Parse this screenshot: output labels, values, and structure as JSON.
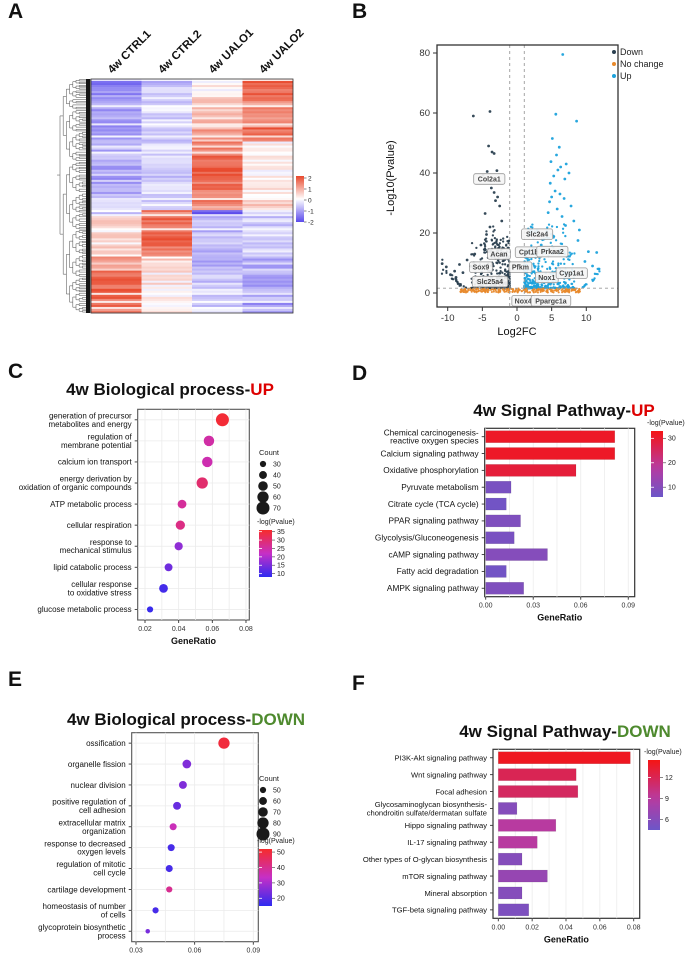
{
  "figure": {
    "panel_labels": [
      "A",
      "B",
      "C",
      "D",
      "E",
      "F"
    ]
  },
  "chart_data": [
    {
      "id": "heatmap",
      "panel": "A",
      "type": "heatmap",
      "columns": [
        "4w CTRL1",
        "4w CTRL2",
        "4w UALO1",
        "4w UALO2"
      ],
      "n_rows": 115,
      "colors": {
        "positive": "#E8482C",
        "negative": "#5A4AEC",
        "zero": "#FFFFFF"
      },
      "legend": {
        "ticks": [
          2,
          1,
          0,
          -1,
          -2
        ]
      },
      "row_blocks": [
        {
          "frac": 0.08,
          "means": [
            -1.3,
            -0.6,
            0.15,
            1.6
          ]
        },
        {
          "frac": 0.13,
          "means": [
            -1.1,
            -0.5,
            0.6,
            1.2
          ]
        },
        {
          "frac": 0.06,
          "means": [
            -0.9,
            -0.7,
            0.9,
            1.7
          ]
        },
        {
          "frac": 0.25,
          "means": [
            -0.9,
            -0.5,
            1.55,
            0.15
          ]
        },
        {
          "frac": 0.04,
          "means": [
            -0.5,
            -0.3,
            1.2,
            0.6
          ]
        },
        {
          "frac": 0.03,
          "means": [
            -0.4,
            1.3,
            -1.7,
            -0.4
          ]
        },
        {
          "frac": 0.17,
          "means": [
            0.3,
            1.55,
            -0.8,
            -0.5
          ]
        },
        {
          "frac": 0.06,
          "means": [
            0.9,
            0.4,
            -1.0,
            -0.8
          ]
        },
        {
          "frac": 0.18,
          "means": [
            1.5,
            0.2,
            -0.55,
            -1.0
          ]
        }
      ]
    },
    {
      "id": "volcano",
      "panel": "B",
      "type": "scatter",
      "xlabel": "Log2FC",
      "ylabel": "-Log10(Pvalue)",
      "x_ticks": [
        -10,
        -5,
        0,
        5,
        10
      ],
      "y_ticks": [
        0,
        20,
        40,
        60,
        80
      ],
      "xlim": [
        -11.5,
        14.6
      ],
      "ylim": [
        -4.7,
        84
      ],
      "thresholds": {
        "x": [
          -1.05,
          1.05
        ],
        "y": 1.6
      },
      "legend": [
        {
          "label": "Down",
          "color": "#2B4050"
        },
        {
          "label": "No change",
          "color": "#E8892B"
        },
        {
          "label": "Up",
          "color": "#1CA2DC"
        }
      ],
      "series": {
        "down": {
          "color": "#2B4050",
          "cloud": {
            "n": 310,
            "edge": -1.05,
            "spread": -5.6,
            "xpow": 1.9,
            "ybase": 1.6,
            "yspan": 16,
            "ypow": 3
          },
          "mid": {
            "n": 45,
            "x0": -1.4,
            "xspan": -3.4,
            "y0": 13.5,
            "yspan": 9
          },
          "arm": {
            "n": 24,
            "x0": -7.2,
            "xspan": -4.1,
            "curve": 0.35
          },
          "features": [
            [
              -6.3,
              59
            ],
            [
              -3.9,
              60.5
            ],
            [
              -4.1,
              49
            ],
            [
              -3.6,
              47
            ],
            [
              -3.3,
              46.5
            ],
            [
              -4.3,
              40.5
            ],
            [
              -4.9,
              39.3
            ],
            [
              -2.9,
              40.8
            ],
            [
              -3.7,
              35
            ],
            [
              -3.3,
              33.5
            ],
            [
              -2.8,
              32
            ],
            [
              -3.1,
              30.8
            ],
            [
              -2.5,
              29
            ],
            [
              -4.6,
              26.5
            ],
            [
              -2.2,
              24
            ],
            [
              -3.9,
              22
            ],
            [
              -4.4,
              19.5
            ],
            [
              -5.2,
              16
            ],
            [
              -6.1,
              13
            ],
            [
              -7.2,
              11
            ],
            [
              -8.3,
              9.5
            ],
            [
              -9.0,
              7.3
            ],
            [
              -10.2,
              8.7
            ],
            [
              -10.8,
              9.8
            ],
            [
              -8.8,
              5.2
            ],
            [
              -9.6,
              6.1
            ],
            [
              -7.8,
              6.8
            ],
            [
              -6.7,
              8.9
            ]
          ]
        },
        "up": {
          "color": "#1CA2DC",
          "cloud": {
            "n": 360,
            "edge": 1.05,
            "spread": 7.3,
            "xpow": 1.8,
            "ybase": 1.6,
            "yspan": 13,
            "ypow": 3
          },
          "mid": {
            "n": 55,
            "x0": 1.6,
            "xspan": 5.5,
            "y0": 13,
            "yspan": 10
          },
          "arm": {
            "n": 16,
            "x0": 9.2,
            "xspan": 3.0,
            "curve": 0.6
          },
          "features": [
            [
              6.6,
              79.5
            ],
            [
              5.6,
              59.6
            ],
            [
              8.6,
              57.3
            ],
            [
              5.1,
              51.5
            ],
            [
              6.1,
              48.6
            ],
            [
              5.7,
              46
            ],
            [
              4.9,
              43.8
            ],
            [
              7.1,
              43
            ],
            [
              6.3,
              42
            ],
            [
              5.9,
              41
            ],
            [
              7.5,
              40
            ],
            [
              5.3,
              39
            ],
            [
              6.9,
              38
            ],
            [
              4.8,
              36.6
            ],
            [
              5.5,
              34
            ],
            [
              6.2,
              33
            ],
            [
              5.0,
              32
            ],
            [
              6.8,
              31.5
            ],
            [
              4.7,
              30.4
            ],
            [
              7.8,
              29
            ],
            [
              5.8,
              28
            ],
            [
              4.5,
              26.8
            ],
            [
              6.5,
              25.5
            ],
            [
              8.2,
              24
            ],
            [
              7.0,
              22.5
            ],
            [
              9.0,
              21
            ],
            [
              4.3,
              20.5
            ],
            [
              5.2,
              19
            ],
            [
              8.8,
              17.5
            ],
            [
              3.9,
              18
            ],
            [
              2.9,
              21
            ],
            [
              3.5,
              16
            ],
            [
              3.2,
              14.5
            ],
            [
              10.3,
              13.8
            ],
            [
              11.5,
              13.5
            ],
            [
              9.8,
              10.5
            ],
            [
              10.9,
              9
            ],
            [
              11.8,
              8
            ],
            [
              9.4,
              6.5
            ]
          ]
        },
        "no_change": {
          "color": "#E8892B",
          "n": 230,
          "x0": -8.2,
          "xspan": 17.4,
          "y0": 0.15,
          "yspan": 1.35
        }
      },
      "gene_labels": [
        {
          "gene": "Col2a1",
          "x": -4.0,
          "y": 38
        },
        {
          "gene": "Acan",
          "x": -2.6,
          "y": 13
        },
        {
          "gene": "Sox9",
          "x": -5.2,
          "y": 8.6
        },
        {
          "gene": "Slc25a4",
          "x": -3.9,
          "y": 3.8
        },
        {
          "gene": "Nox4",
          "x": 0.9,
          "y": -2.6
        },
        {
          "gene": "Pfkm",
          "x": 0.5,
          "y": 8.6
        },
        {
          "gene": "Cpt1b",
          "x": 1.7,
          "y": 13.6
        },
        {
          "gene": "Slc2a4",
          "x": 2.9,
          "y": 19.6
        },
        {
          "gene": "Prkaa2",
          "x": 5.1,
          "y": 13.8
        },
        {
          "gene": "Nox1",
          "x": 4.3,
          "y": 5.2
        },
        {
          "gene": "Cyp1a1",
          "x": 7.9,
          "y": 6.6
        },
        {
          "gene": "Ppargc1a",
          "x": 4.9,
          "y": -2.6
        }
      ]
    },
    {
      "id": "bp_up",
      "panel": "C",
      "type": "dot",
      "title_main": "4w Biological process-",
      "title_suffix": "UP",
      "suffix_color": "#DD0000",
      "xlabel": "GeneRatio",
      "x_ticks": [
        0.02,
        0.04,
        0.06,
        0.08
      ],
      "categories": [
        [
          "generation of precursor",
          "metabolites and energy"
        ],
        [
          "regulation of",
          "membrane potential"
        ],
        [
          "calcium ion transport"
        ],
        [
          "energy derivation by",
          "oxidation of organic compounds"
        ],
        [
          "ATP metabolic process"
        ],
        [
          "cellular respiration"
        ],
        [
          "response to",
          "mechanical stimulus"
        ],
        [
          "lipid catabolic process"
        ],
        [
          "cellular response",
          "to oxidative stress"
        ],
        [
          "glucose metabolic process"
        ]
      ],
      "gene_ratio": [
        0.066,
        0.058,
        0.057,
        0.054,
        0.042,
        0.041,
        0.04,
        0.034,
        0.031,
        0.023
      ],
      "count": [
        70,
        55,
        55,
        60,
        45,
        48,
        42,
        40,
        45,
        30
      ],
      "logp": [
        35,
        25,
        24,
        30,
        26,
        28,
        17,
        14,
        10,
        9
      ],
      "color_domain": [
        8,
        36
      ],
      "legend": {
        "count_title": "Count",
        "count_values": [
          30,
          40,
          50,
          60,
          70
        ],
        "colorbar_title": "-log(Pvalue)",
        "colorbar_ticks": [
          35,
          30,
          25,
          20,
          15,
          10
        ]
      }
    },
    {
      "id": "sp_up",
      "panel": "D",
      "type": "bar",
      "title_main": "4w Signal Pathway-",
      "title_suffix": "UP",
      "suffix_color": "#DD0000",
      "xlabel": "GeneRatio",
      "x_ticks": [
        0.0,
        0.03,
        0.06,
        0.09
      ],
      "categories": [
        [
          "Chemical carcinogenesis-",
          "reactive oxygen species"
        ],
        [
          "Calcium signaling pathway"
        ],
        [
          "Oxidative phosphorylation"
        ],
        [
          "Pyruvate metabolism"
        ],
        [
          "Citrate cycle (TCA cycle)"
        ],
        [
          "PPAR signaling pathway"
        ],
        [
          "Glycolysis/Gluconeogenesis"
        ],
        [
          "cAMP signaling pathway"
        ],
        [
          "Fatty acid degradation"
        ],
        [
          "AMPK signaling pathway"
        ]
      ],
      "gene_ratio": [
        0.0815,
        0.0815,
        0.057,
        0.016,
        0.013,
        0.022,
        0.018,
        0.039,
        0.013,
        0.024
      ],
      "logp": [
        31,
        31,
        29,
        8,
        7,
        9,
        8,
        10,
        7,
        9
      ],
      "color_domain": [
        6,
        33
      ],
      "legend": {
        "colorbar_title": "-log(Pvalue)",
        "colorbar_ticks": [
          30,
          20,
          10
        ]
      }
    },
    {
      "id": "bp_down",
      "panel": "E",
      "type": "dot",
      "title_main": "4w Biological process-",
      "title_suffix": "DOWN",
      "suffix_color": "#4E8A2E",
      "xlabel": "GeneRatio",
      "x_ticks": [
        0.03,
        0.06,
        0.09
      ],
      "categories": [
        [
          "ossification"
        ],
        [
          "organelle fission"
        ],
        [
          "nuclear division"
        ],
        [
          "positive regulation of",
          "cell adhesion"
        ],
        [
          "extracellular matrix",
          "organization"
        ],
        [
          "response to decreased",
          "oxygen levels"
        ],
        [
          "regulation of mitotic",
          "cell cycle"
        ],
        [
          "cartilage development"
        ],
        [
          "homeostasis of number",
          "of cells"
        ],
        [
          "glycoprotein biosynthetic",
          "process"
        ]
      ],
      "gene_ratio": [
        0.075,
        0.056,
        0.054,
        0.051,
        0.049,
        0.048,
        0.047,
        0.047,
        0.04,
        0.036
      ],
      "count": [
        80,
        65,
        60,
        60,
        55,
        55,
        55,
        50,
        50,
        40
      ],
      "logp": [
        50,
        25,
        25,
        22,
        35,
        18,
        18,
        40,
        18,
        24
      ],
      "color_domain": [
        15,
        52
      ],
      "legend": {
        "count_title": "Count",
        "count_values": [
          50,
          60,
          70,
          80,
          90
        ],
        "colorbar_title": "-log(Pvalue)",
        "colorbar_ticks": [
          50,
          40,
          30,
          20
        ]
      }
    },
    {
      "id": "sp_down",
      "panel": "F",
      "type": "bar",
      "title_main": "4w Signal Pathway-",
      "title_suffix": "DOWN",
      "suffix_color": "#4E8A2E",
      "xlabel": "GeneRatio",
      "x_ticks": [
        0.0,
        0.02,
        0.04,
        0.06,
        0.08
      ],
      "categories": [
        [
          "PI3K-Akt signaling pathway"
        ],
        [
          "Wnt signaling pathway"
        ],
        [
          "Focal adhesion"
        ],
        [
          "Glycosaminoglycan biosynthesis-",
          "chondroitin sulfate/dermatan sulfate"
        ],
        [
          "Hippo signaling pathway"
        ],
        [
          "IL-17 signaling pathway"
        ],
        [
          "Other types of O-glycan biosynthesis"
        ],
        [
          "mTOR signaling pathway"
        ],
        [
          "Mineral absorption"
        ],
        [
          "TGF-beta signaling pathway"
        ]
      ],
      "gene_ratio": [
        0.078,
        0.046,
        0.047,
        0.011,
        0.034,
        0.023,
        0.014,
        0.029,
        0.014,
        0.018
      ],
      "logp": [
        14,
        12,
        11.5,
        6,
        9,
        9,
        6,
        7,
        6,
        5.5
      ],
      "color_domain": [
        4.5,
        14.5
      ],
      "legend": {
        "colorbar_title": "-log(Pvalue)",
        "colorbar_ticks": [
          12,
          9,
          6
        ]
      }
    }
  ]
}
